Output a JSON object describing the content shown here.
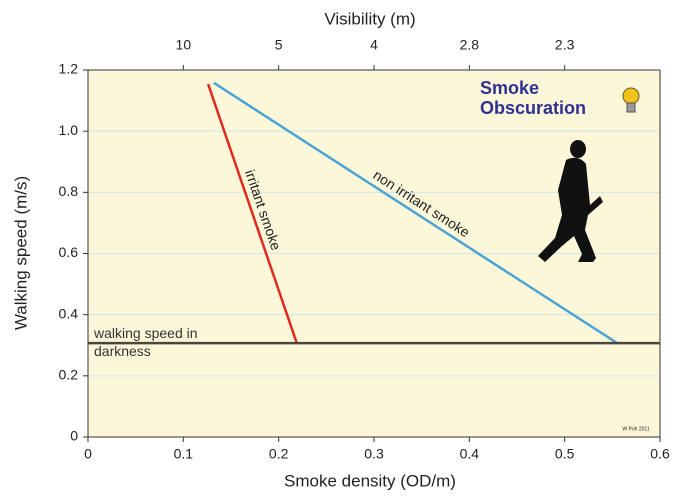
{
  "chart_data": {
    "type": "line",
    "title": "Smoke Obscuration",
    "credit": "W Poh 2011",
    "x_label": "Smoke density (OD/m)",
    "y_label": "Walking speed (m/s)",
    "x2_label": "Visibility (m)",
    "xlim": [
      0,
      0.6
    ],
    "xticks": [
      0,
      0.1,
      0.2,
      0.3,
      0.4,
      0.5,
      0.6
    ],
    "ylim": [
      0,
      1.2
    ],
    "yticks": [
      0,
      0.2,
      0.4,
      0.6,
      0.8,
      {
        "value": 1,
        "label": "1.0"
      },
      1.2
    ],
    "x2ticks": [
      {
        "value": 0.1,
        "label": "10"
      },
      {
        "value": 0.2,
        "label": "5"
      },
      {
        "value": 0.3,
        "label": "4"
      },
      {
        "value": 0.4,
        "label": "2.8"
      },
      {
        "value": 0.5,
        "label": "2.3"
      }
    ],
    "grid": true,
    "series": [
      {
        "name": "irritant smoke",
        "color": "#e2291d",
        "x": [
          0.126,
          0.219
        ],
        "values": [
          1.154,
          0.307
        ]
      },
      {
        "name": "non irritant smoke",
        "color": "#4ba3d6",
        "x": [
          0.132,
          0.555
        ],
        "values": [
          1.158,
          0.307
        ]
      },
      {
        "name": "walking speed in darkness",
        "color": "#4d443c",
        "x": [
          0,
          0.6
        ],
        "values": [
          0.307,
          0.307
        ]
      }
    ]
  }
}
